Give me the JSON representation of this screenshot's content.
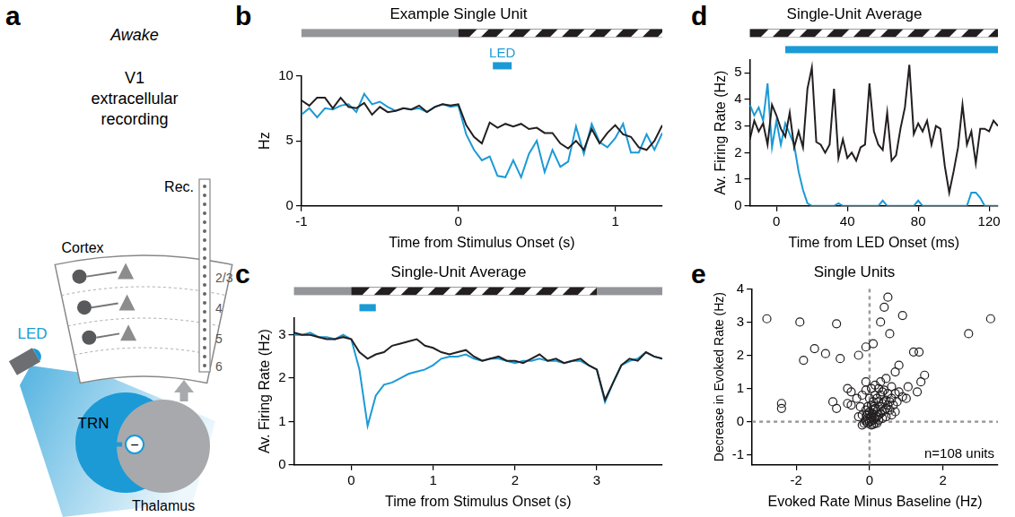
{
  "diagram": {
    "panel": "a",
    "state": "Awake",
    "recording_lines": [
      "V1",
      "extracellular",
      "recording"
    ],
    "electrode": "Rec.",
    "cortex": "Cortex",
    "layers": [
      "2/3",
      "4",
      "5",
      "6"
    ],
    "led": "LED",
    "trn": "TRN",
    "thalamus": "Thalamus",
    "sign": "−"
  },
  "chart_data": [
    {
      "panel": "b",
      "type": "line",
      "title": "Example Single Unit",
      "x_label": "Time from Stimulus Onset (s)",
      "y_label": "Hz",
      "xlim": [
        -1,
        1.3
      ],
      "xticks": [
        -1,
        0,
        1
      ],
      "ylim": [
        0,
        10
      ],
      "yticks": [
        0,
        5,
        10
      ],
      "grid": false,
      "stimulus": {
        "blank": {
          "intervals": [
            [
              -1,
              0
            ]
          ],
          "color": "#939598"
        },
        "grating": {
          "intervals": [
            [
              0,
              1.3
            ]
          ],
          "color": "#231f20"
        }
      },
      "led": {
        "label": "LED",
        "intervals": [
          [
            0.22,
            0.34
          ]
        ],
        "color": "#1b9ad6"
      },
      "x": [
        -1,
        -0.95,
        -0.9,
        -0.85,
        -0.8,
        -0.75,
        -0.7,
        -0.65,
        -0.6,
        -0.55,
        -0.5,
        -0.45,
        -0.4,
        -0.35,
        -0.3,
        -0.25,
        -0.2,
        -0.15,
        -0.1,
        -0.05,
        0,
        0.05,
        0.1,
        0.15,
        0.2,
        0.25,
        0.3,
        0.35,
        0.4,
        0.45,
        0.5,
        0.55,
        0.6,
        0.65,
        0.7,
        0.75,
        0.8,
        0.85,
        0.9,
        0.95,
        1,
        1.05,
        1.1,
        1.15,
        1.2,
        1.25,
        1.3
      ],
      "series": [
        {
          "color": "#231f20",
          "values": [
            8.1,
            7.7,
            8.3,
            8.3,
            7.5,
            8.3,
            7.6,
            7.5,
            7.9,
            7.0,
            7.6,
            7.2,
            7.3,
            7.5,
            7.4,
            7.7,
            7.2,
            7.6,
            7.8,
            7.7,
            7.8,
            6.2,
            5.3,
            4.8,
            6.4,
            6.0,
            6.3,
            6.1,
            6.3,
            5.9,
            6.0,
            5.6,
            5.6,
            4.8,
            4.4,
            5.0,
            4.3,
            5.9,
            4.8,
            5.6,
            6.2,
            5.5,
            5.3,
            4.5,
            4.3,
            5.0,
            6.2
          ]
        },
        {
          "color": "#1b9ad6",
          "values": [
            7.0,
            7.5,
            6.8,
            7.5,
            7.4,
            7.7,
            7.8,
            7.2,
            8.6,
            7.8,
            8.0,
            7.6,
            7.3,
            7.5,
            7.4,
            7.5,
            7.2,
            7.6,
            7.8,
            7.6,
            7.7,
            5.5,
            4.3,
            3.5,
            3.8,
            2.3,
            2.2,
            3.5,
            2.2,
            4.0,
            5.0,
            2.6,
            4.3,
            3.0,
            3.4,
            6.1,
            4.0,
            6.3,
            4.9,
            4.5,
            5.2,
            6.3,
            4.1,
            4.1,
            5.5,
            4.3,
            5.6
          ]
        }
      ]
    },
    {
      "panel": "c",
      "type": "line",
      "title": "Single-Unit Average",
      "x_label": "Time from Stimulus Onset (s)",
      "y_label": "Av. Firing Rate (Hz)",
      "xlim": [
        -0.7,
        3.8
      ],
      "xticks": [
        0,
        1,
        2,
        3
      ],
      "ylim": [
        0,
        3.4
      ],
      "yticks": [
        0,
        1,
        2,
        3
      ],
      "grid": false,
      "stimulus": {
        "blank": {
          "intervals": [
            [
              -0.7,
              0
            ],
            [
              3,
              3.8
            ]
          ],
          "color": "#939598"
        },
        "grating": {
          "intervals": [
            [
              0,
              3
            ]
          ],
          "color": "#231f20"
        }
      },
      "led": {
        "intervals": [
          [
            0.1,
            0.3
          ]
        ],
        "color": "#1b9ad6"
      },
      "x": [
        -0.7,
        -0.6,
        -0.5,
        -0.4,
        -0.3,
        -0.2,
        -0.1,
        0,
        0.1,
        0.2,
        0.3,
        0.4,
        0.5,
        0.6,
        0.7,
        0.8,
        0.9,
        1,
        1.1,
        1.2,
        1.3,
        1.4,
        1.5,
        1.6,
        1.7,
        1.8,
        1.9,
        2,
        2.1,
        2.2,
        2.3,
        2.4,
        2.5,
        2.6,
        2.7,
        2.8,
        2.9,
        3,
        3.1,
        3.2,
        3.3,
        3.4,
        3.5,
        3.6,
        3.7,
        3.8
      ],
      "series": [
        {
          "color": "#231f20",
          "values": [
            3.05,
            3.0,
            3.0,
            2.95,
            2.9,
            2.9,
            2.95,
            2.9,
            2.6,
            2.45,
            2.55,
            2.6,
            2.75,
            2.8,
            2.85,
            2.9,
            2.75,
            2.7,
            2.6,
            2.55,
            2.6,
            2.65,
            2.5,
            2.4,
            2.45,
            2.5,
            2.4,
            2.4,
            2.35,
            2.45,
            2.55,
            2.4,
            2.45,
            2.35,
            2.4,
            2.45,
            2.3,
            2.2,
            1.5,
            1.9,
            2.3,
            2.45,
            2.4,
            2.6,
            2.5,
            2.45
          ]
        },
        {
          "color": "#1b9ad6",
          "values": [
            3.0,
            3.0,
            3.05,
            2.95,
            2.95,
            2.9,
            3.0,
            2.9,
            2.2,
            0.9,
            1.6,
            1.85,
            1.9,
            2.0,
            2.1,
            2.15,
            2.2,
            2.3,
            2.45,
            2.5,
            2.5,
            2.55,
            2.45,
            2.4,
            2.45,
            2.45,
            2.4,
            2.35,
            2.4,
            2.4,
            2.45,
            2.4,
            2.4,
            2.35,
            2.4,
            2.4,
            2.3,
            2.2,
            1.45,
            1.9,
            2.3,
            2.4,
            2.45,
            2.6,
            2.5,
            2.45
          ]
        }
      ]
    },
    {
      "panel": "d",
      "type": "line",
      "title": "Single-Unit Average",
      "x_label": "Time from LED Onset (ms)",
      "y_label": "Av. Firing Rate (Hz)",
      "xlim": [
        -15,
        125
      ],
      "xticks": [
        0,
        40,
        80,
        120
      ],
      "ylim": [
        0,
        5.5
      ],
      "yticks": [
        0,
        1,
        2,
        3,
        4,
        5
      ],
      "grid": false,
      "stimulus": {
        "grating": {
          "intervals": [
            [
              -15,
              125
            ]
          ],
          "color": "#231f20"
        }
      },
      "led": {
        "intervals": [
          [
            5,
            125
          ]
        ],
        "color": "#1b9ad6"
      },
      "x": [
        -15,
        -12.5,
        -10,
        -7.5,
        -5,
        -2.5,
        0,
        2.5,
        5,
        7.5,
        10,
        12.5,
        15,
        17.5,
        20,
        22.5,
        25,
        27.5,
        30,
        32.5,
        35,
        37.5,
        40,
        42.5,
        45,
        47.5,
        50,
        52.5,
        55,
        57.5,
        60,
        62.5,
        65,
        67.5,
        70,
        72.5,
        75,
        77.5,
        80,
        82.5,
        85,
        87.5,
        90,
        92.5,
        95,
        97.5,
        100,
        102.5,
        105,
        107.5,
        110,
        112.5,
        115,
        117.5,
        120,
        122.5,
        125
      ],
      "series": [
        {
          "color": "#231f20",
          "values": [
            2.5,
            3.2,
            2.8,
            3.1,
            2.3,
            3.8,
            3.4,
            2.9,
            2.6,
            3.5,
            2.2,
            2.8,
            2.2,
            4.4,
            5.2,
            2.4,
            2.3,
            2.0,
            2.3,
            4.4,
            1.8,
            2.5,
            1.8,
            2.0,
            1.7,
            2.2,
            2.3,
            4.6,
            2.8,
            2.3,
            2.1,
            3.5,
            1.7,
            1.9,
            2.9,
            3.7,
            5.3,
            2.7,
            3.1,
            2.8,
            3.2,
            2.3,
            3.0,
            2.9,
            1.5,
            0.5,
            1.3,
            2.2,
            3.8,
            2.3,
            2.8,
            1.6,
            2.9,
            2.9,
            2.8,
            3.2,
            3.0
          ]
        },
        {
          "color": "#1b9ad6",
          "values": [
            3.8,
            3.4,
            3.7,
            3.2,
            4.6,
            2.2,
            3.2,
            2.3,
            3.1,
            2.7,
            2.3,
            1.3,
            0.6,
            0.1,
            0,
            0,
            0,
            0,
            0,
            0,
            0.1,
            0,
            0,
            0,
            0,
            0,
            0,
            0,
            0,
            0,
            0.2,
            0,
            0,
            0,
            0,
            0,
            0,
            0,
            0.2,
            0,
            0,
            0,
            0,
            0,
            0,
            0,
            0,
            0,
            0,
            0,
            0.5,
            0.5,
            0.3,
            0,
            0,
            0,
            0
          ]
        }
      ]
    },
    {
      "panel": "e",
      "type": "scatter",
      "title": "Single Units",
      "x_label": "Evoked Rate Minus Baseline (Hz)",
      "y_label": "Decrease in Evoked Rate (Hz)",
      "xlim": [
        -3.2,
        3.5
      ],
      "xticks": [
        -2,
        0,
        2
      ],
      "ylim": [
        -1.3,
        4
      ],
      "yticks": [
        -1,
        0,
        1,
        2,
        3,
        4
      ],
      "grid": false,
      "ref_lines": {
        "x": 0,
        "y": 0
      },
      "annotation": "n=108 units",
      "marker": "open circle",
      "color": "#231f20",
      "x": [
        -2.8,
        -1.9,
        -1.8,
        -1.5,
        -1.2,
        -0.9,
        -0.8,
        -0.3,
        -0.1,
        0.1,
        0.3,
        0.4,
        0.5,
        0.55,
        0.9,
        1.2,
        1.35,
        1.4,
        1.5,
        1.3,
        1.05,
        2.7,
        3.3,
        -2.4,
        -2.4,
        -1.0,
        -0.9,
        -0.6,
        -0.5,
        -0.5,
        -0.6,
        0.8,
        0.7,
        0.7,
        0.8,
        0.9,
        1.0,
        0,
        0.05,
        0.1,
        -0.05,
        -0.1,
        0.02,
        0.15,
        0.2,
        0.25,
        0.3,
        0.1,
        0.05,
        -0.05,
        -0.1,
        -0.15,
        -0.2,
        0.35,
        0.4,
        0.45,
        0.5,
        0.2,
        0.15,
        0.1,
        0.3,
        0.35,
        0.4,
        0.45,
        0.55,
        0.6,
        0.25,
        0.2,
        0.3,
        0.1,
        0.05,
        -0.05,
        0,
        0,
        0.15,
        0.35,
        0.5,
        0.65,
        0.55,
        0.6,
        0.45,
        0.35,
        0.25,
        0.15,
        0.05,
        -0.05,
        -0.1,
        -0.2,
        -0.3,
        -0.25,
        -0.35,
        -0.2,
        -0.1,
        0.05,
        0.25,
        0.4,
        0.15,
        0.3,
        0.45,
        -0.1,
        0.6,
        0.7,
        0.75,
        0.2,
        0.1,
        -0.08,
        0.08,
        0.12
      ],
      "values": [
        3.1,
        3.0,
        1.85,
        2.2,
        2.05,
        2.95,
        1.9,
        2.0,
        2.25,
        2.35,
        3.0,
        3.45,
        3.75,
        2.65,
        3.2,
        2.1,
        2.1,
        1.2,
        1.4,
        0.9,
        1.05,
        2.65,
        3.1,
        0.55,
        0.4,
        0.6,
        0.4,
        1.0,
        0.9,
        0.5,
        0.55,
        1.7,
        1.5,
        0.85,
        0.9,
        0.75,
        0.7,
        0,
        0.02,
        0.05,
        -0.05,
        0,
        0.1,
        0.1,
        0.15,
        0.2,
        0.25,
        0.2,
        0.15,
        0.1,
        0.05,
        -0.05,
        -0.1,
        0.3,
        0.35,
        0.4,
        0.5,
        0.3,
        0.4,
        0.35,
        0.45,
        0.55,
        0.6,
        0.65,
        0.6,
        0.7,
        0.6,
        0.7,
        0.8,
        0.6,
        0.5,
        0.45,
        0.3,
        0.7,
        0.8,
        0.9,
        0.85,
        0.5,
        0.35,
        0.2,
        0.15,
        0.1,
        0.05,
        -0.05,
        -0.1,
        0.25,
        0.35,
        0.2,
        0.15,
        0.45,
        0.7,
        0.8,
        0.95,
        1.0,
        1.0,
        0.95,
        1.1,
        1.2,
        1.3,
        1.2,
        1.05,
        0.3,
        0.6,
        -0.05,
        -0.08,
        0.18,
        0.25,
        0.45
      ]
    }
  ]
}
